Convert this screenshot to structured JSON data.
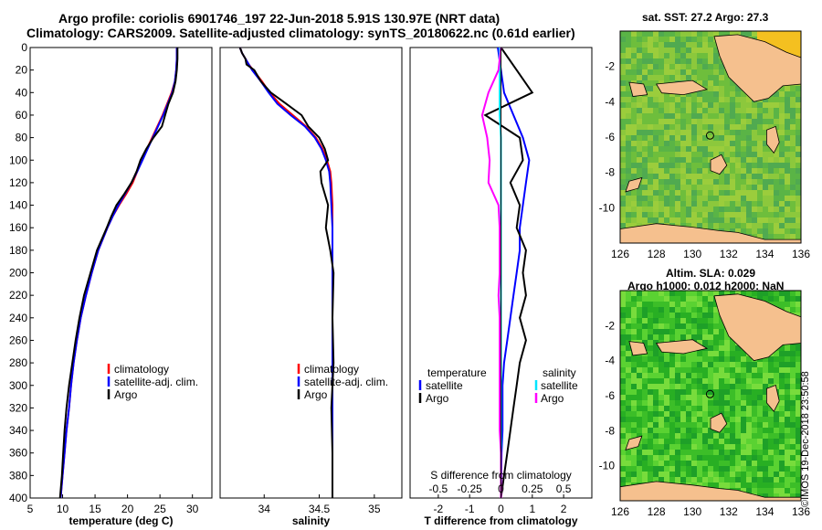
{
  "titles": {
    "line1": "Argo profile: coriolis 6901746_197 22-Jun-2018 5.91S 130.97E (NRT data)",
    "line2": "Climatology: CARS2009. Satellite-adjusted climatology: synTS_20180622.nc (0.61d earlier)"
  },
  "credit": "©IMOS 19-Dec-2018 23:50:58",
  "colors": {
    "climatology": "#ff0000",
    "satellite": "#0000ff",
    "argo": "#000000",
    "s_satellite": "#00e5ff",
    "s_argo": "#ff00ff"
  },
  "chart_data": [
    {
      "type": "line",
      "name": "temperature",
      "xlabel": "temperature (deg C)",
      "ylabel": "",
      "xlim": [
        5,
        33
      ],
      "ylim": [
        400,
        0
      ],
      "xticks": [
        5,
        10,
        15,
        20,
        25,
        30
      ],
      "yticks": [
        0,
        20,
        40,
        60,
        80,
        100,
        120,
        140,
        160,
        180,
        200,
        220,
        240,
        260,
        280,
        300,
        320,
        340,
        360,
        380,
        400
      ],
      "legend": [
        "climatology",
        "satellite-adj. clim.",
        "Argo"
      ],
      "depth": [
        0,
        10,
        20,
        30,
        40,
        50,
        60,
        70,
        80,
        90,
        100,
        110,
        120,
        130,
        140,
        150,
        160,
        180,
        200,
        220,
        240,
        260,
        280,
        300,
        320,
        340,
        360,
        380,
        400
      ],
      "series": [
        {
          "name": "climatology",
          "values": [
            27.6,
            27.6,
            27.5,
            27.3,
            26.8,
            26.1,
            25.4,
            24.6,
            23.8,
            23.0,
            22.2,
            21.5,
            20.8,
            19.8,
            18.7,
            17.7,
            16.9,
            15.5,
            14.5,
            13.6,
            12.8,
            12.2,
            11.7,
            11.3,
            11.0,
            10.6,
            10.3,
            10.0,
            9.7
          ]
        },
        {
          "name": "satellite-adj. clim.",
          "values": [
            27.6,
            27.6,
            27.5,
            27.3,
            26.9,
            26.2,
            25.5,
            24.7,
            23.9,
            23.1,
            22.3,
            21.5,
            20.6,
            19.6,
            18.6,
            17.7,
            16.9,
            15.5,
            14.5,
            13.6,
            12.8,
            12.2,
            11.7,
            11.3,
            11.0,
            10.6,
            10.3,
            10.0,
            9.7
          ]
        },
        {
          "name": "Argo",
          "values": [
            27.7,
            27.7,
            27.6,
            27.4,
            27.0,
            26.3,
            25.8,
            25.3,
            24.0,
            22.9,
            22.0,
            21.4,
            20.6,
            19.5,
            18.3,
            17.5,
            16.8,
            15.3,
            14.3,
            13.3,
            12.6,
            12.0,
            11.5,
            11.0,
            10.6,
            10.3,
            10.1,
            9.9,
            9.6
          ]
        }
      ]
    },
    {
      "type": "line",
      "name": "salinity",
      "xlabel": "salinity",
      "xlim": [
        33.6,
        35.25
      ],
      "ylim": [
        400,
        0
      ],
      "xticks": [
        34,
        34.5,
        35
      ],
      "legend": [
        "climatology",
        "satellite-adj. clim.",
        "Argo"
      ],
      "depth": [
        0,
        5,
        10,
        15,
        20,
        30,
        40,
        50,
        60,
        70,
        80,
        90,
        100,
        110,
        120,
        140,
        160,
        180,
        200,
        240,
        280,
        320,
        360,
        400
      ],
      "series": [
        {
          "name": "climatology",
          "values": [
            33.78,
            33.8,
            33.83,
            33.86,
            33.9,
            33.98,
            34.05,
            34.14,
            34.26,
            34.38,
            34.47,
            34.53,
            34.57,
            34.6,
            34.61,
            34.62,
            34.62,
            34.62,
            34.62,
            34.62,
            34.62,
            34.62,
            34.62,
            34.62
          ]
        },
        {
          "name": "satellite-adj. clim.",
          "values": [
            33.78,
            33.8,
            33.83,
            33.86,
            33.89,
            33.97,
            34.04,
            34.12,
            34.24,
            34.37,
            34.46,
            34.52,
            34.56,
            34.59,
            34.6,
            34.61,
            34.62,
            34.62,
            34.62,
            34.62,
            34.62,
            34.62,
            34.62,
            34.62
          ]
        },
        {
          "name": "Argo",
          "values": [
            33.78,
            33.8,
            33.83,
            33.84,
            33.91,
            33.97,
            34.06,
            34.2,
            34.34,
            34.4,
            34.5,
            34.55,
            34.58,
            34.51,
            34.52,
            34.58,
            34.56,
            34.6,
            34.63,
            34.62,
            34.63,
            34.61,
            34.62,
            34.62
          ]
        }
      ]
    },
    {
      "type": "line",
      "name": "difference from climatology",
      "xlabel": "T difference from climatology",
      "xlim": [
        -2.9,
        2.9
      ],
      "ylim": [
        400,
        0
      ],
      "xticks": [
        -2,
        -1,
        0,
        1,
        2
      ],
      "top_axis": {
        "label": "S difference from climatology",
        "ticks": [
          "-0.5",
          "-0.25",
          "0",
          "0.25",
          "0.5"
        ],
        "scale": 4
      },
      "legend_left": {
        "title": "temperature",
        "items": [
          "satellite",
          "Argo"
        ]
      },
      "legend_right": {
        "title": "salinity",
        "items": [
          "satellite",
          "Argo"
        ]
      },
      "depth": [
        0,
        20,
        40,
        60,
        80,
        100,
        120,
        140,
        160,
        180,
        200,
        220,
        240,
        260,
        280,
        300,
        320,
        340,
        360,
        380,
        400
      ],
      "series": [
        {
          "name": "T satellite",
          "values": [
            -0.1,
            0.0,
            0.1,
            0.4,
            0.7,
            0.9,
            0.8,
            0.7,
            0.6,
            0.6,
            0.5,
            0.4,
            0.3,
            0.2,
            0.1,
            0.05,
            0.05,
            0.05,
            0.02,
            0.01,
            0.0
          ]
        },
        {
          "name": "T Argo",
          "values": [
            0.0,
            0.5,
            1.0,
            -0.5,
            0.6,
            0.7,
            0.3,
            0.6,
            0.5,
            0.8,
            0.7,
            0.8,
            0.6,
            0.8,
            0.6,
            0.5,
            0.4,
            0.3,
            0.2,
            0.1,
            0.0
          ]
        },
        {
          "name": "S satellite",
          "values": [
            -0.01,
            -0.01,
            -0.01,
            -0.01,
            0.0,
            0.0,
            0.0,
            0.0,
            0.0,
            0.0,
            0.0,
            0.0,
            0.0,
            0.0,
            0.0,
            0.0,
            0.0,
            0.0,
            0.0,
            0.0,
            0.0
          ]
        },
        {
          "name": "S Argo",
          "values": [
            0.0,
            -0.02,
            -0.1,
            -0.15,
            -0.11,
            -0.09,
            -0.1,
            -0.02,
            -0.01,
            -0.01,
            -0.01,
            -0.02,
            -0.01,
            -0.01,
            -0.01,
            -0.01,
            -0.01,
            -0.01,
            0.0,
            0.0,
            0.0
          ]
        }
      ]
    },
    {
      "type": "heatmap",
      "name": "sst map",
      "title": "sat. SST: 27.2 Argo: 27.3",
      "xlim": [
        126,
        136
      ],
      "ylim": [
        -12,
        0
      ],
      "xticks": [
        126,
        128,
        130,
        132,
        134,
        136
      ],
      "yticks": [
        -2,
        -4,
        -6,
        -8,
        -10
      ],
      "marker": [
        130.97,
        -5.91
      ]
    },
    {
      "type": "heatmap",
      "name": "sla map",
      "title": "Altim. SLA: 0.029",
      "subtitle": "Argo h1000: 0.012 h2000: NaN",
      "xlim": [
        126,
        136
      ],
      "ylim": [
        -12,
        0
      ],
      "xticks": [
        126,
        128,
        130,
        132,
        134,
        136
      ],
      "yticks": [
        -2,
        -4,
        -6,
        -8,
        -10
      ],
      "marker": [
        130.97,
        -5.91
      ]
    }
  ]
}
